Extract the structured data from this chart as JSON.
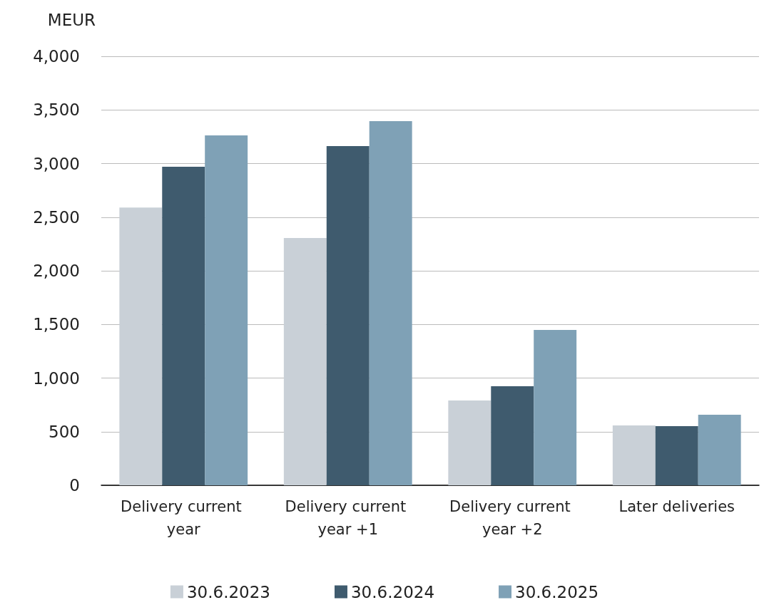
{
  "chart_data": {
    "type": "bar",
    "ylabel": "MEUR",
    "categories": [
      "Delivery current year",
      "Delivery current year +1",
      "Delivery current year +2",
      "Later deliveries"
    ],
    "series": [
      {
        "name": "30.6.2023",
        "color": "#c9d0d7",
        "values": [
          2590,
          2305,
          790,
          558
        ]
      },
      {
        "name": "30.6.2024",
        "color": "#3f5b6e",
        "values": [
          2970,
          3163,
          924,
          551
        ]
      },
      {
        "name": "30.6.2025",
        "color": "#7fa1b6",
        "values": [
          3262,
          3395,
          1449,
          658
        ]
      }
    ],
    "ylim": [
      0,
      4000
    ],
    "yticks": [
      0,
      500,
      {
        "value": 1000,
        "label": "1,000"
      },
      {
        "value": 1500,
        "label": "1,500"
      },
      {
        "value": 2000,
        "label": "2,000"
      },
      {
        "value": 2500,
        "label": "2,500"
      },
      {
        "value": 3000,
        "label": "3,000"
      },
      {
        "value": 3500,
        "label": "3,500"
      },
      {
        "value": 4000,
        "label": "4,000"
      }
    ],
    "grid": "y",
    "legend": "bottom"
  }
}
